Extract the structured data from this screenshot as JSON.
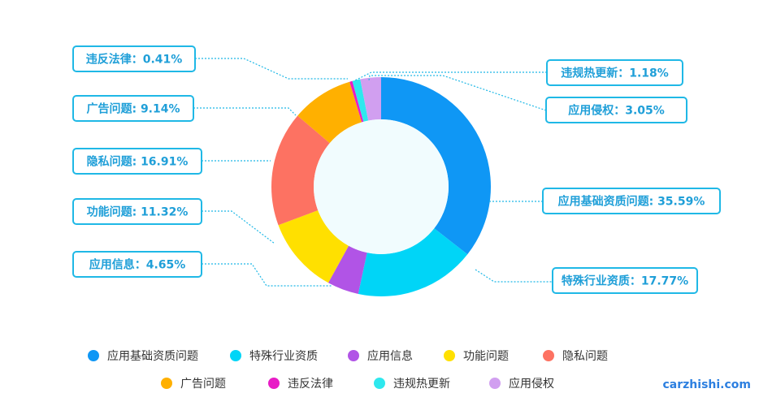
{
  "chart_data": {
    "type": "pie",
    "style": "donut",
    "title": "",
    "categories": [
      "应用基础资质问题",
      "特殊行业资质",
      "应用信息",
      "功能问题",
      "隐私问题",
      "广告问题",
      "违反法律",
      "违规热更新",
      "应用侵权"
    ],
    "values": [
      35.59,
      17.77,
      4.65,
      11.32,
      16.91,
      9.14,
      0.41,
      1.18,
      3.05
    ],
    "labels": [
      "应用基础资质问题: 35.59%",
      "特殊行业资质：17.77%",
      "应用信息：4.65%",
      "功能问题: 11.32%",
      "隐私问题: 16.91%",
      "广告问题: 9.14%",
      "违反法律：0.41%",
      "违规热更新：1.18%",
      "应用侵权：3.05%"
    ],
    "colors": [
      "#0f97f5",
      "#00d5f7",
      "#b154e6",
      "#ffe000",
      "#fd7262",
      "#ffb000",
      "#e81cc6",
      "#2ee8ee",
      "#d19ff0"
    ],
    "center_fill": "#f1fcfe",
    "legend_placement": "bottom",
    "grid": false
  },
  "watermark": "carzhishi.com"
}
